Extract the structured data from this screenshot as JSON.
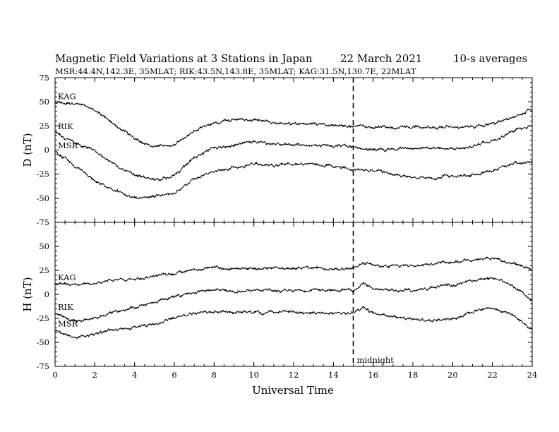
{
  "title": {
    "main": "Magnetic Field Variations at 3 Stations in Japan",
    "date": "22 March   2021",
    "averaging": "10-s averages",
    "stations_line": "MSR:44.4N,142.3E, 35MLAT;  RIK:43.5N,143.8E, 35MLAT;  KAG:31.5N,130.7E, 22MLAT"
  },
  "chart_data": {
    "type": "line",
    "xlabel": "Universal Time",
    "xlim": [
      0,
      24
    ],
    "xticks": [
      0,
      2,
      4,
      6,
      8,
      10,
      12,
      14,
      16,
      18,
      20,
      22,
      24
    ],
    "grid": false,
    "annotation": {
      "x": 15,
      "label": "midnight",
      "style": "dashed vertical line"
    },
    "panels": [
      {
        "id": "D",
        "ylabel": "D (nT)",
        "ylim": [
          -75,
          75
        ],
        "yticks": [
          75,
          50,
          25,
          0,
          -25,
          -50,
          -75
        ],
        "series": [
          {
            "name": "KAG",
            "x": [
              0,
              1,
              1.5,
              2,
              3,
              4,
              4.5,
              5,
              6,
              7,
              8,
              9,
              10,
              11,
              12,
              13,
              14,
              15,
              16,
              17,
              18,
              19,
              20,
              21,
              22,
              23,
              24
            ],
            "y": [
              49,
              48,
              47,
              41,
              27,
              12,
              6,
              4,
              5,
              21,
              28,
              32,
              31,
              28,
              27,
              27,
              26,
              24,
              24,
              23,
              24,
              24,
              24,
              24,
              27,
              34,
              42
            ]
          },
          {
            "name": "RIK",
            "x": [
              0,
              1,
              2,
              3,
              4,
              5,
              6,
              7,
              8,
              9,
              10,
              11,
              12,
              13,
              14,
              15,
              16,
              17,
              18,
              19,
              20,
              21,
              22,
              23,
              24
            ],
            "y": [
              18,
              8,
              0,
              -15,
              -26,
              -31,
              -27,
              -8,
              2,
              5,
              8,
              6,
              6,
              5,
              4,
              3,
              0,
              1,
              2,
              2,
              2,
              4,
              10,
              19,
              25
            ]
          },
          {
            "name": "MSR",
            "x": [
              0,
              1,
              2,
              3,
              4,
              5,
              6,
              7,
              8,
              9,
              10,
              11,
              12,
              13,
              14,
              15,
              16,
              17,
              18,
              19,
              20,
              21,
              22,
              23,
              24
            ],
            "y": [
              -2,
              -16,
              -32,
              -42,
              -50,
              -48,
              -45,
              -30,
              -22,
              -18,
              -14,
              -16,
              -14,
              -15,
              -17,
              -20,
              -22,
              -25,
              -28,
              -29,
              -27,
              -26,
              -22,
              -14,
              -12
            ]
          }
        ]
      },
      {
        "id": "H",
        "ylabel": "H (nT)",
        "ylim": [
          -75,
          75
        ],
        "yticks": [
          50,
          25,
          0,
          -25,
          -50,
          -75
        ],
        "series": [
          {
            "name": "KAG",
            "x": [
              0,
              1,
              2,
              3,
              4,
              5,
              6,
              7,
              8,
              9,
              10,
              11,
              12,
              13,
              14,
              15,
              15.5,
              16,
              17,
              18,
              19,
              20,
              21,
              22,
              23,
              24
            ],
            "y": [
              11,
              10,
              12,
              15,
              16,
              19,
              22,
              26,
              28,
              26,
              27,
              28,
              27,
              27,
              26,
              27,
              33,
              30,
              29,
              30,
              32,
              34,
              36,
              38,
              33,
              26
            ]
          },
          {
            "name": "RIK",
            "x": [
              0,
              1,
              2,
              3,
              4,
              5,
              6,
              7,
              8,
              9,
              10,
              11,
              12,
              13,
              14,
              15,
              15.5,
              16,
              17,
              18,
              19,
              20,
              21,
              22,
              23,
              24
            ],
            "y": [
              -20,
              -28,
              -25,
              -18,
              -14,
              -8,
              -3,
              2,
              5,
              3,
              4,
              5,
              4,
              4,
              4,
              4,
              12,
              6,
              4,
              5,
              7,
              10,
              14,
              17,
              9,
              -6
            ]
          },
          {
            "name": "MSR",
            "x": [
              0,
              1,
              2,
              3,
              4,
              5,
              6,
              7,
              8,
              9,
              10,
              11,
              12,
              13,
              14,
              15,
              15.5,
              16,
              17,
              18,
              19,
              20,
              21,
              22,
              23,
              24
            ],
            "y": [
              -37,
              -46,
              -41,
              -37,
              -34,
              -31,
              -25,
              -20,
              -17,
              -19,
              -18,
              -19,
              -18,
              -19,
              -20,
              -20,
              -13,
              -20,
              -23,
              -26,
              -28,
              -25,
              -19,
              -14,
              -21,
              -37
            ]
          }
        ]
      }
    ]
  }
}
